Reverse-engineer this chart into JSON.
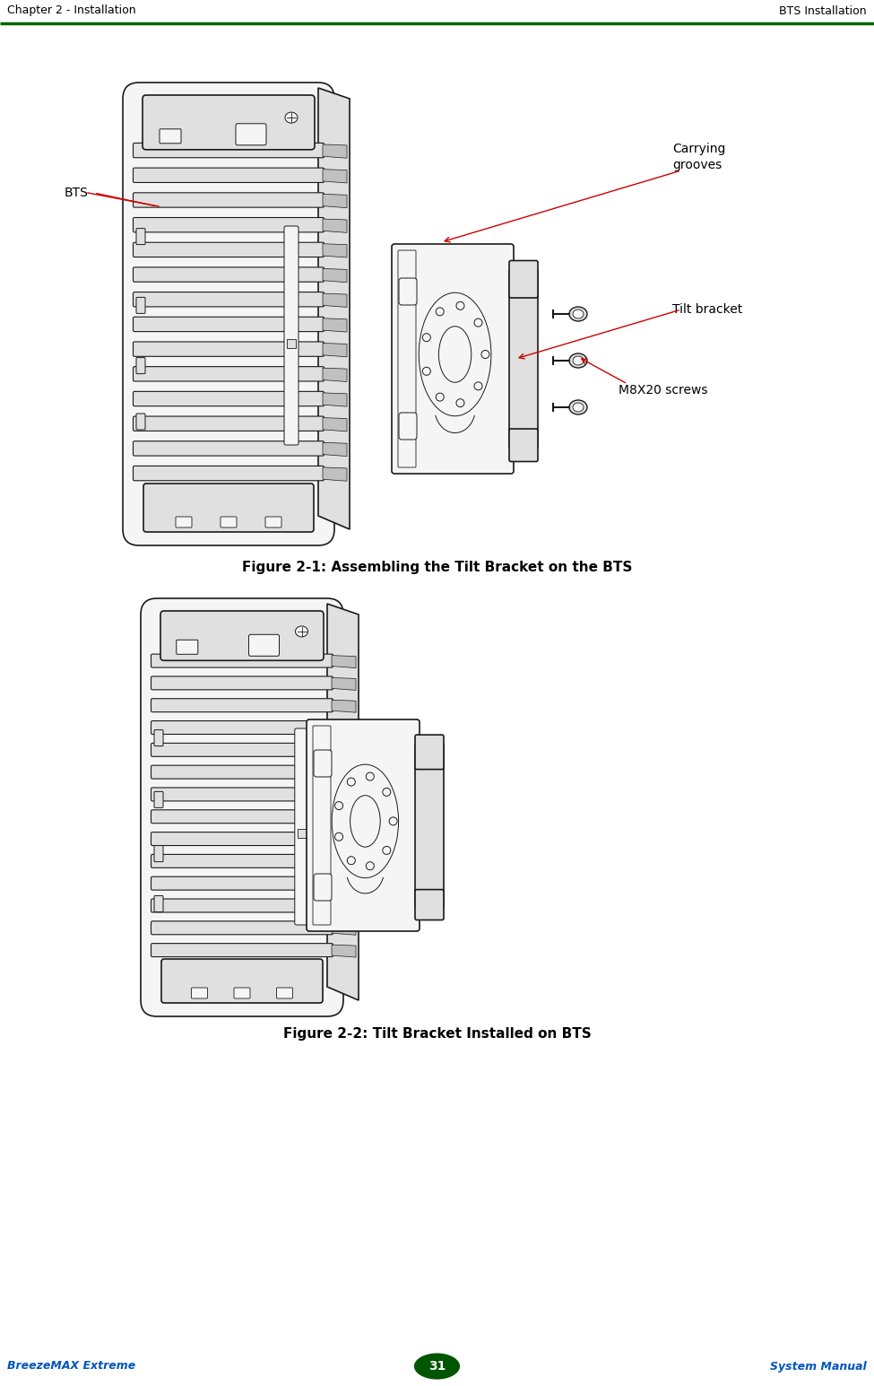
{
  "bg_color": "#ffffff",
  "page_bg": "#ffffff",
  "header_text_left": "Chapter 2 - Installation",
  "header_text_right": "BTS Installation",
  "header_line_color": "#006600",
  "header_text_color": "#000000",
  "footer_text_left": "BreezeMAX Extreme",
  "footer_text_right": "System Manual",
  "footer_text_color": "#0055bb",
  "footer_page_num": "31",
  "footer_circle_color": "#005500",
  "footer_circle_text_color": "#ffffff",
  "fig1_caption": "Figure 2-1: Assembling the Tilt Bracket on the BTS",
  "fig2_caption": "Figure 2-2: Tilt Bracket Installed on BTS",
  "caption_fontsize": 11,
  "label_BTS": "BTS",
  "label_carrying": "Carrying\ngrooves",
  "label_tilt": "Tilt bracket",
  "label_screws": "M8X20 screws",
  "label_color": "#000000",
  "arrow_color": "#cc0000",
  "header_fontsize": 9,
  "footer_fontsize": 9,
  "draw_color": "#1a1a1a",
  "light_fill": "#f5f5f5",
  "mid_fill": "#e0e0e0",
  "dark_fill": "#c0c0c0"
}
